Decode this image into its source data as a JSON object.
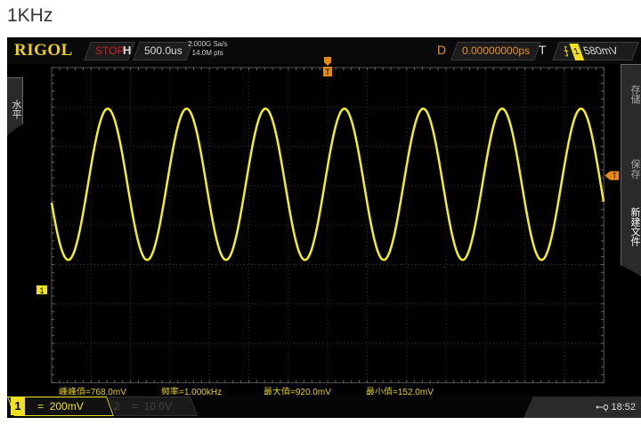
{
  "page_title": "1KHz",
  "header": {
    "brand": "RIGOL",
    "run_state": "STOP",
    "horizontal_label": "H",
    "timebase": "500.0us",
    "sample_rate": "2.000G Sa/s",
    "memory_depth": "14.0M pts",
    "delay_label": "D",
    "delay": "0.00000000ps",
    "trigger_label": "T",
    "trigger_source": "1",
    "trigger_level": "580mV"
  },
  "left_menu": {
    "label": "水平"
  },
  "right_menu": {
    "items": [
      "存储",
      "保存",
      "新建文件"
    ]
  },
  "markers": {
    "channel1": "1",
    "trigger": "T"
  },
  "measurements": [
    {
      "label": "峰峰值=768.0mV"
    },
    {
      "label": "频率=1.000kHz"
    },
    {
      "label": "最大值=920.0mV"
    },
    {
      "label": "最小值=152.0mV"
    }
  ],
  "channels": [
    {
      "number": "1",
      "coupling": "=",
      "scale": "200mV",
      "active": true,
      "color": "#f0e020"
    },
    {
      "number": "2",
      "coupling": "=",
      "scale": "10.0V",
      "active": false
    }
  ],
  "status": {
    "usb_icon": "usb-icon",
    "time": "18:52"
  },
  "waveform": {
    "frequency_hz": 1000,
    "max_mv": 920,
    "min_mv": 152,
    "volts_per_div_mv": 200,
    "time_per_div_us": 500,
    "color": "#f5ee20"
  }
}
